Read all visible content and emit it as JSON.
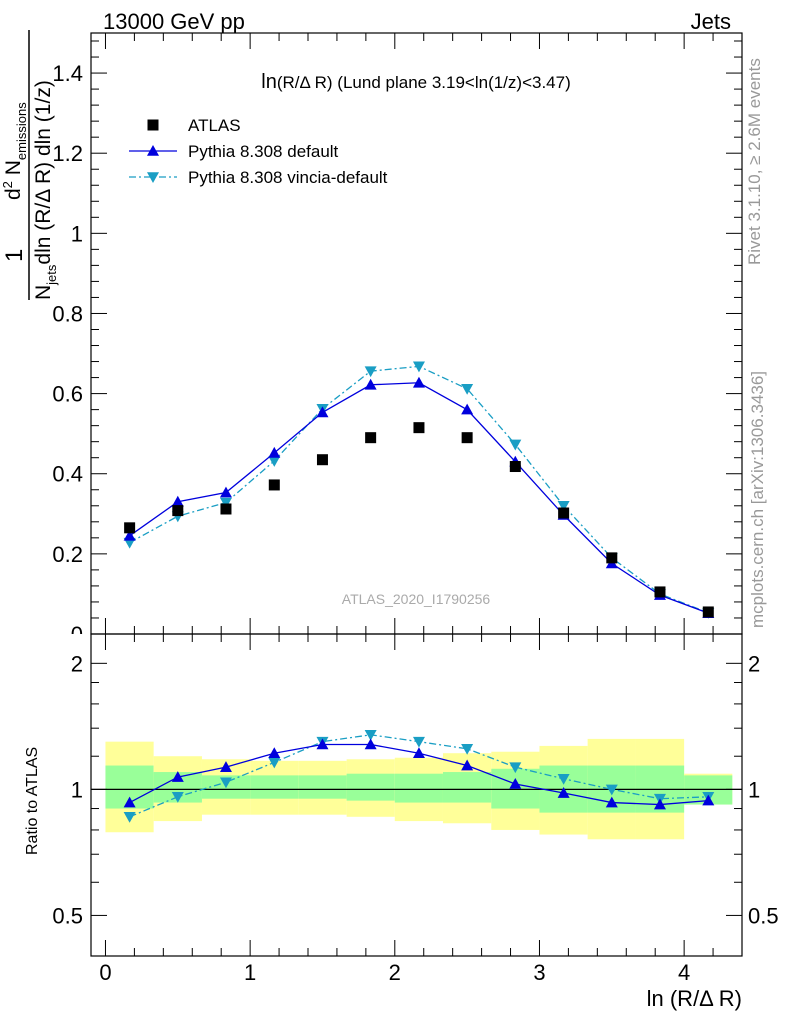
{
  "header": {
    "left": "13000 GeV pp",
    "right": "Jets"
  },
  "side_labels": {
    "rivet": "Rivet 3.1.10, ≥ 2.6M events",
    "mcplots": "mcplots.cern.ch [arXiv:1306.3436]"
  },
  "main_title": {
    "part1": "ln",
    "part2": "(R/Δ R)",
    "part3": " (Lund plane 3.19<ln(1/z)<3.47)"
  },
  "y_axis_label": {
    "one": "1",
    "n": "N",
    "jets_sub": "jets",
    "den_rest": "dln (R/Δ R) dln (1/z)",
    "num_d": "d",
    "num_sup": "2",
    "num_N": " N",
    "num_sub": "emissions"
  },
  "watermark": "ATLAS_2020_I1790256",
  "ratio_ylabel": "Ratio to ATLAS",
  "x_axis_label": "ln (R/Δ R)",
  "colors": {
    "data": "#000000",
    "pythia_default": "#0000dd",
    "pythia_vincia": "#1a9ec4",
    "band_inner": "#99ff99",
    "band_outer": "#ffff99",
    "side_text": "#999999"
  },
  "chart_data": [
    {
      "type": "scatter",
      "panel": "main",
      "xlim": [
        -0.1,
        4.4
      ],
      "ylim": [
        0,
        1.5
      ],
      "x_ticks": [
        0,
        1,
        2,
        3,
        4
      ],
      "y_ticks": [
        0.2,
        0.4,
        0.6,
        0.8,
        1,
        1.2,
        1.4
      ],
      "y_tick_labels": [
        "0.2",
        "0.4",
        "0.6",
        "0.8",
        "1",
        "1.2",
        "1.4"
      ],
      "bottom_tick_label": "0",
      "x": [
        0.167,
        0.5,
        0.833,
        1.167,
        1.5,
        1.833,
        2.167,
        2.5,
        2.833,
        3.167,
        3.5,
        3.833,
        4.167
      ],
      "series": [
        {
          "name": "ATLAS",
          "marker": "square",
          "values": [
            0.265,
            0.308,
            0.312,
            0.372,
            0.435,
            0.49,
            0.515,
            0.49,
            0.418,
            0.302,
            0.19,
            0.105,
            0.055
          ]
        },
        {
          "name": "Pythia 8.308 default",
          "marker": "triangle-up",
          "line": "solid",
          "values": [
            0.245,
            0.33,
            0.353,
            0.452,
            0.553,
            0.622,
            0.627,
            0.56,
            0.43,
            0.297,
            0.176,
            0.097,
            0.052
          ]
        },
        {
          "name": "Pythia 8.308 vincia-default",
          "marker": "triangle-down",
          "line": "dashdot",
          "values": [
            0.228,
            0.294,
            0.328,
            0.432,
            0.562,
            0.656,
            0.668,
            0.612,
            0.473,
            0.32,
            0.19,
            0.1,
            0.053
          ]
        }
      ],
      "legend": "top-left"
    },
    {
      "type": "line",
      "panel": "ratio",
      "xlim": [
        -0.1,
        4.4
      ],
      "ylim": [
        0.4,
        2.35
      ],
      "y_scale": "log",
      "x_ticks": [
        0,
        1,
        2,
        3,
        4
      ],
      "x_tick_labels": [
        "0",
        "1",
        "2",
        "3",
        "4"
      ],
      "y_ticks": [
        0.5,
        1,
        2
      ],
      "y_tick_labels": [
        "0.5",
        "1",
        "2"
      ],
      "x": [
        0.167,
        0.5,
        0.833,
        1.167,
        1.5,
        1.833,
        2.167,
        2.5,
        2.833,
        3.167,
        3.5,
        3.833,
        4.167
      ],
      "bins": [
        [
          0,
          0.333
        ],
        [
          0.333,
          0.667
        ],
        [
          0.667,
          1
        ],
        [
          1,
          1.333
        ],
        [
          1.333,
          1.667
        ],
        [
          1.667,
          2
        ],
        [
          2,
          2.333
        ],
        [
          2.333,
          2.667
        ],
        [
          2.667,
          3
        ],
        [
          3,
          3.333
        ],
        [
          3.333,
          3.667
        ],
        [
          3.667,
          4
        ],
        [
          4,
          4.333
        ]
      ],
      "band_inner": [
        [
          0.9,
          1.14
        ],
        [
          0.93,
          1.1
        ],
        [
          0.95,
          1.08
        ],
        [
          0.95,
          1.08
        ],
        [
          0.95,
          1.08
        ],
        [
          0.94,
          1.09
        ],
        [
          0.93,
          1.09
        ],
        [
          0.93,
          1.1
        ],
        [
          0.9,
          1.12
        ],
        [
          0.88,
          1.14
        ],
        [
          0.88,
          1.14
        ],
        [
          0.88,
          1.14
        ],
        [
          0.92,
          1.08
        ]
      ],
      "band_outer": [
        [
          0.79,
          1.3
        ],
        [
          0.84,
          1.2
        ],
        [
          0.87,
          1.18
        ],
        [
          0.87,
          1.17
        ],
        [
          0.87,
          1.17
        ],
        [
          0.86,
          1.18
        ],
        [
          0.84,
          1.19
        ],
        [
          0.83,
          1.22
        ],
        [
          0.8,
          1.23
        ],
        [
          0.78,
          1.27
        ],
        [
          0.76,
          1.32
        ],
        [
          0.76,
          1.32
        ],
        [
          0.92,
          1.09
        ]
      ],
      "series": [
        {
          "name": "Pythia 8.308 default",
          "values": [
            0.93,
            1.07,
            1.13,
            1.22,
            1.28,
            1.28,
            1.22,
            1.14,
            1.03,
            0.98,
            0.93,
            0.92,
            0.94
          ]
        },
        {
          "name": "Pythia 8.308 vincia-default",
          "values": [
            0.86,
            0.96,
            1.04,
            1.16,
            1.3,
            1.35,
            1.3,
            1.25,
            1.13,
            1.06,
            1.0,
            0.95,
            0.96
          ]
        }
      ]
    }
  ]
}
